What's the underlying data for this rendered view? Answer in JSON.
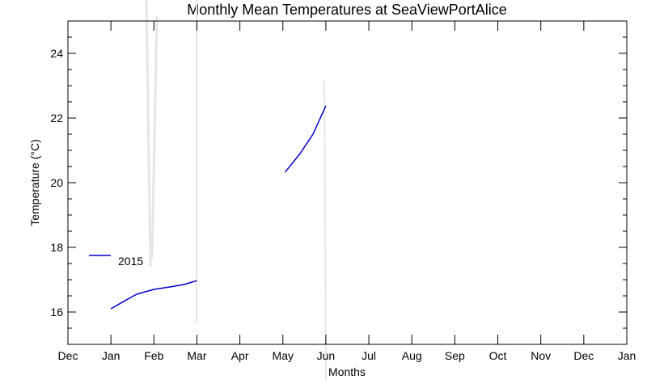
{
  "chart_data": {
    "type": "line",
    "title": "Monthly Mean Temperatures at SeaViewPortAlice",
    "xlabel": "Months",
    "ylabel": "Temperature (°C)",
    "x_ticks": [
      "Dec",
      "Jan",
      "Feb",
      "Mar",
      "Apr",
      "May",
      "Jun",
      "Jul",
      "Aug",
      "Sep",
      "Oct",
      "Nov",
      "Dec",
      "Jan"
    ],
    "y_ticks": [
      16,
      18,
      20,
      22,
      24
    ],
    "xlim": [
      0,
      13
    ],
    "ylim": [
      15,
      25
    ],
    "grid": false,
    "legend_position": "left",
    "series": [
      {
        "name": "2015",
        "color": "#0000cc",
        "segments": [
          [
            [
              1.0,
              16.1
            ],
            [
              1.3,
              16.33
            ],
            [
              1.6,
              16.55
            ],
            [
              2.0,
              16.7
            ],
            [
              2.4,
              16.78
            ],
            [
              2.7,
              16.85
            ],
            [
              3.0,
              16.97
            ]
          ],
          [
            [
              5.05,
              20.32
            ],
            [
              5.4,
              20.9
            ],
            [
              5.7,
              21.5
            ],
            [
              6.0,
              22.38
            ]
          ]
        ]
      }
    ]
  }
}
